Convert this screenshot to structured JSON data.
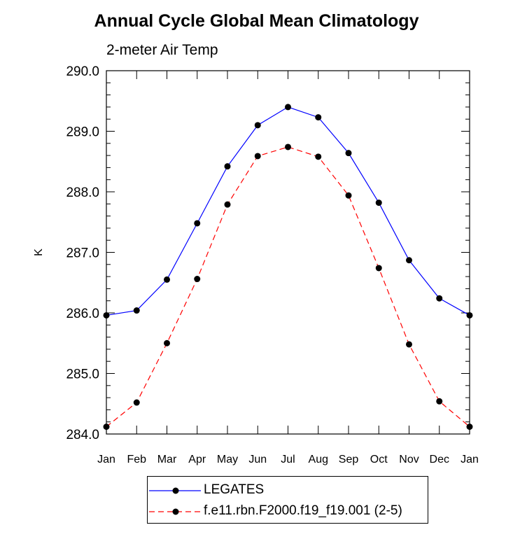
{
  "chart_data": {
    "type": "line",
    "title": "Annual Cycle Global Mean Climatology",
    "subtitle": "2-meter Air Temp",
    "ylabel": "K",
    "xlabel": "",
    "ylim": [
      284.0,
      290.0
    ],
    "yticks": [
      "284.0",
      "285.0",
      "286.0",
      "287.0",
      "288.0",
      "289.0",
      "290.0"
    ],
    "categories": [
      "Jan",
      "Feb",
      "Mar",
      "Apr",
      "May",
      "Jun",
      "Jul",
      "Aug",
      "Sep",
      "Oct",
      "Nov",
      "Dec",
      "Jan"
    ],
    "grid": false,
    "legend_position": "bottom",
    "series": [
      {
        "name": "LEGATES",
        "color": "#0000ff",
        "dash": "solid",
        "values": [
          285.96,
          286.04,
          286.55,
          287.48,
          288.42,
          289.1,
          289.4,
          289.23,
          288.64,
          287.82,
          286.87,
          286.24,
          285.96
        ]
      },
      {
        "name": "f.e11.rbn.F2000.f19_f19.001 (2-5)",
        "color": "#ff0000",
        "dash": "dashed",
        "values": [
          284.12,
          284.52,
          285.5,
          286.56,
          287.79,
          288.59,
          288.74,
          288.58,
          287.94,
          286.74,
          285.48,
          284.54,
          284.12
        ]
      }
    ]
  }
}
